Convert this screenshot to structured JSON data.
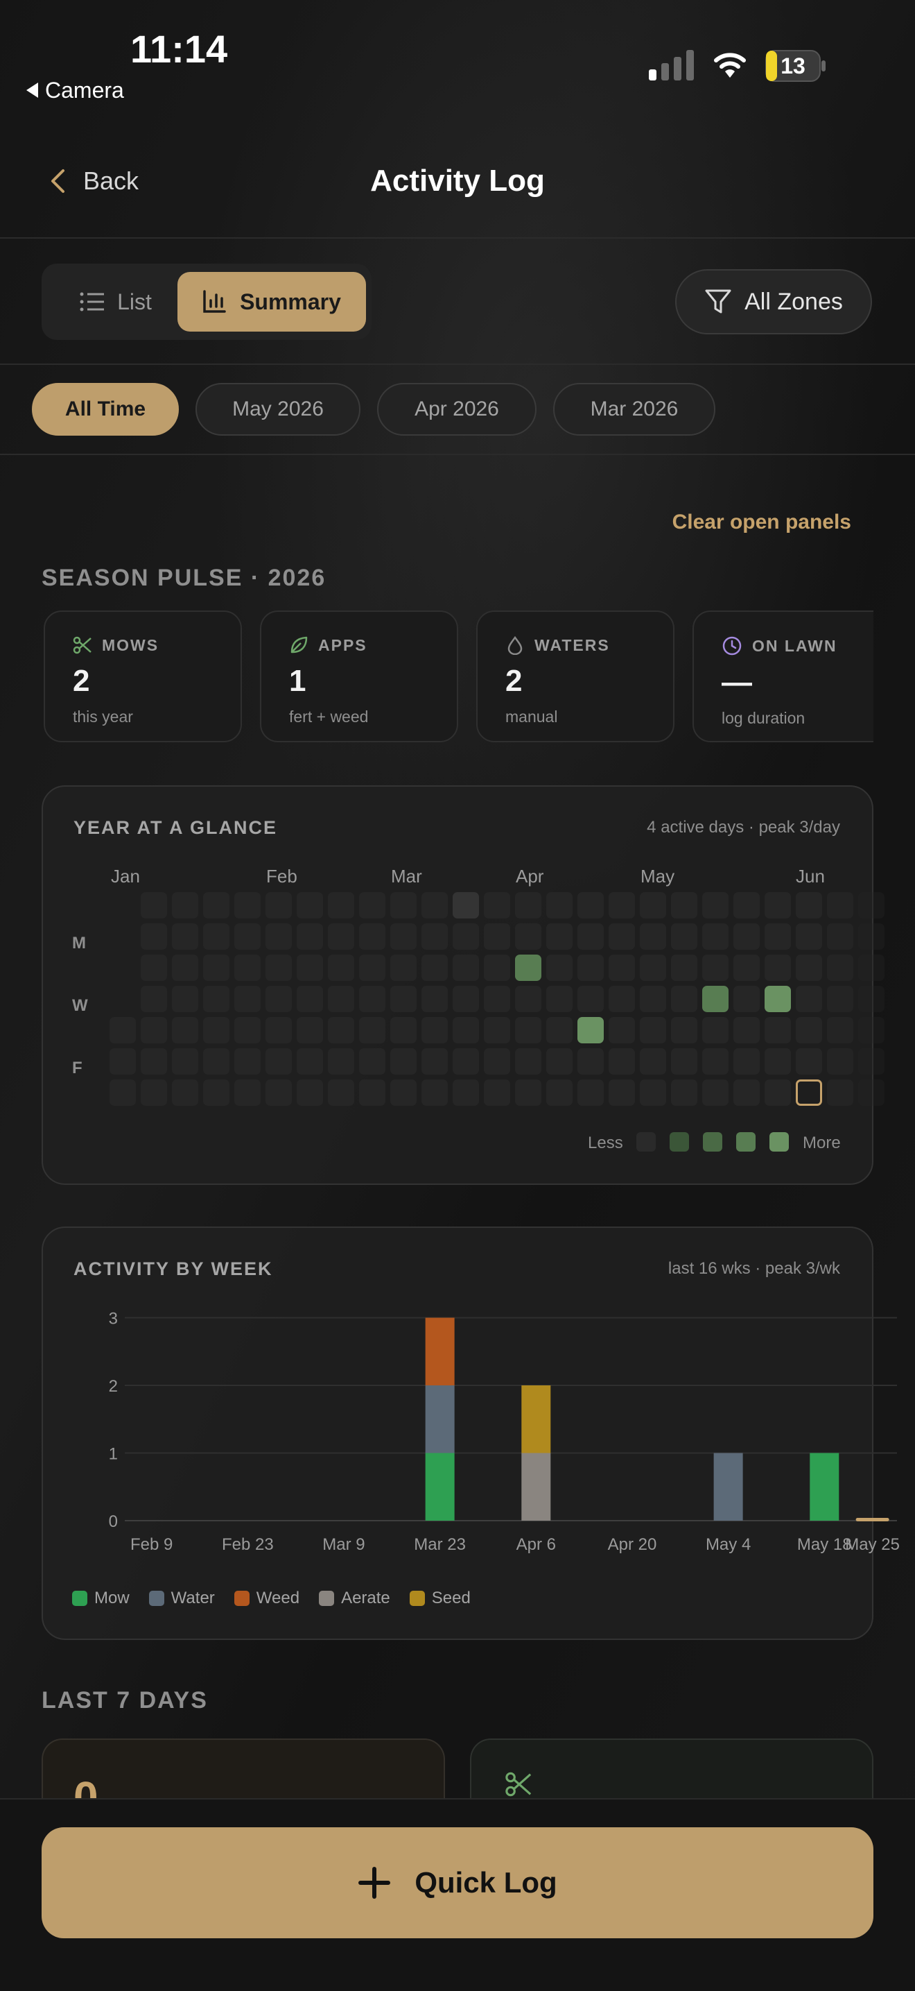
{
  "status": {
    "time": "11:14",
    "back_app": "Camera",
    "battery": "13"
  },
  "nav": {
    "back_label": "Back",
    "title": "Activity Log"
  },
  "view_toggle": {
    "list_label": "List",
    "summary_label": "Summary"
  },
  "zone_filter": {
    "label": "All Zones"
  },
  "periods": [
    "All Time",
    "May 2026",
    "Apr 2026",
    "Mar 2026"
  ],
  "clear_label": "Clear open panels",
  "season": {
    "title": "SEASON PULSE · 2026",
    "cards": [
      {
        "label": "MOWS",
        "value": "2",
        "sub": "this year",
        "icon": "scissors-icon",
        "color": "#6FA86A"
      },
      {
        "label": "APPS",
        "value": "1",
        "sub": "fert + weed",
        "icon": "leaf-icon",
        "color": "#6FA86A"
      },
      {
        "label": "WATERS",
        "value": "2",
        "sub": "manual",
        "icon": "droplet-icon",
        "color": "#8a8a8a"
      },
      {
        "label": "ON LAWN",
        "value": "—",
        "sub": "log duration",
        "icon": "clock-icon",
        "color": "#A58BE0"
      }
    ]
  },
  "heatmap": {
    "title": "YEAR AT A GLANCE",
    "meta": "4 active days · peak 3/day",
    "months": [
      "Jan",
      "Feb",
      "Mar",
      "Apr",
      "May",
      "Jun"
    ],
    "day_labels": [
      "M",
      "W",
      "F"
    ],
    "legend_less": "Less",
    "legend_more": "More",
    "legend_colors": [
      "#2a2a2a",
      "#3b5638",
      "#4a6a45",
      "#587d52",
      "#6a9262"
    ]
  },
  "chart_data": {
    "type": "bar",
    "title": "ACTIVITY BY WEEK",
    "meta": "last 16 wks · peak 3/wk",
    "x_ticks": [
      "Feb 9",
      "Feb 23",
      "Mar 9",
      "Mar 23",
      "Apr 6",
      "Apr 20",
      "May 4",
      "May 18",
      "May 25"
    ],
    "categories": [
      "Feb 9",
      "Feb 16",
      "Feb 23",
      "Mar 2",
      "Mar 9",
      "Mar 16",
      "Mar 23",
      "Mar 30",
      "Apr 6",
      "Apr 13",
      "Apr 20",
      "Apr 27",
      "May 4",
      "May 11",
      "May 18",
      "May 25"
    ],
    "ylim": [
      0,
      3
    ],
    "y_ticks": [
      "0",
      "1",
      "2",
      "3"
    ],
    "grid": true,
    "legend_position": "bottom-left",
    "series": [
      {
        "name": "Mow",
        "color": "#2EA052",
        "values": [
          0,
          0,
          0,
          0,
          0,
          0,
          1,
          0,
          0,
          0,
          0,
          0,
          0,
          0,
          1,
          0
        ]
      },
      {
        "name": "Water",
        "color": "#5C6A78",
        "values": [
          0,
          0,
          0,
          0,
          0,
          0,
          1,
          0,
          0,
          0,
          0,
          0,
          1,
          0,
          0,
          0
        ]
      },
      {
        "name": "Weed",
        "color": "#B4571E",
        "values": [
          0,
          0,
          0,
          0,
          0,
          0,
          1,
          0,
          0,
          0,
          0,
          0,
          0,
          0,
          0,
          0
        ]
      },
      {
        "name": "Aerate",
        "color": "#8A8580",
        "values": [
          0,
          0,
          0,
          0,
          0,
          0,
          0,
          0,
          1,
          0,
          0,
          0,
          0,
          0,
          0,
          0
        ]
      },
      {
        "name": "Seed",
        "color": "#B08A1E",
        "values": [
          0,
          0,
          0,
          0,
          0,
          0,
          0,
          0,
          1,
          0,
          0,
          0,
          0,
          0,
          0,
          0
        ]
      }
    ]
  },
  "last7": {
    "title": "LAST 7 DAYS",
    "card_value": "0"
  },
  "quick_log": {
    "label": "Quick Log"
  }
}
